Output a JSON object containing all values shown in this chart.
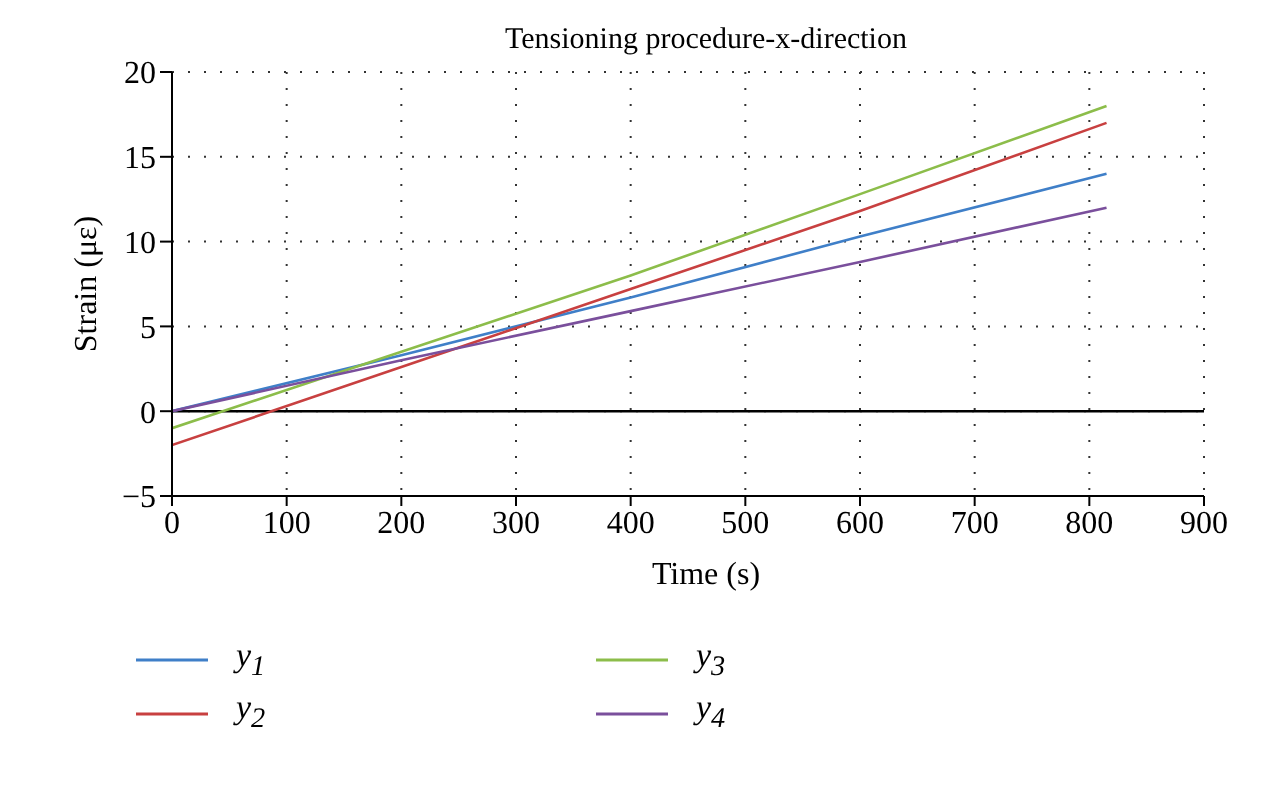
{
  "chart_data": {
    "type": "line",
    "title": "Tensioning procedure-x-direction",
    "xlabel": "Time (s)",
    "ylabel": "Strain (με)",
    "x": [
      0,
      200,
      400,
      600,
      815
    ],
    "series": [
      {
        "name": "y$_{1}$",
        "color": "#3f7fc8",
        "values": [
          0,
          3.3,
          6.7,
          10.3,
          14
        ]
      },
      {
        "name": "y$_{2}$",
        "color": "#c84040",
        "values": [
          -2,
          2.6,
          7.2,
          11.8,
          17
        ]
      },
      {
        "name": "y$_{3}$",
        "color": "#8cbd4a",
        "values": [
          -1,
          3.5,
          8.0,
          12.8,
          18
        ]
      },
      {
        "name": "y$_{4}$",
        "color": "#7a4f9c",
        "values": [
          0,
          3.0,
          5.9,
          8.8,
          12
        ]
      }
    ],
    "xlim": [
      0,
      900
    ],
    "xticks": [
      0,
      100,
      200,
      300,
      400,
      500,
      600,
      700,
      800,
      900
    ],
    "ylim": [
      -5,
      20
    ],
    "yticks": [
      -5,
      0,
      5,
      10,
      15,
      20
    ],
    "ref_lines": [
      {
        "axis": "y",
        "value": 0,
        "label": null,
        "color": "#000000"
      }
    ],
    "grid": true,
    "legend": "bottom",
    "marker": "none",
    "line_style": "solid"
  }
}
